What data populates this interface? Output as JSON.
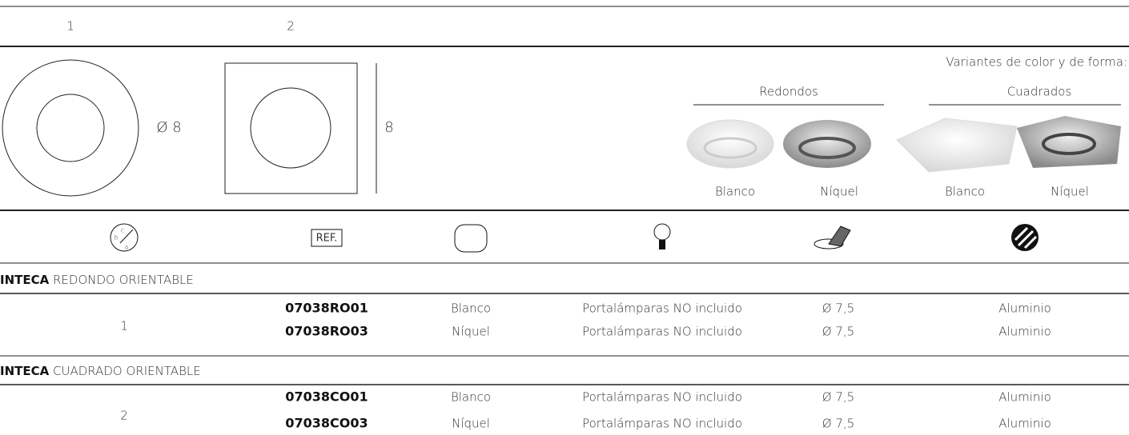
{
  "header": {
    "col_labels": [
      "1",
      "2"
    ]
  },
  "drawings": {
    "diameter": "Ø 8",
    "side": "8"
  },
  "variants": {
    "title": "Variantes de color y de forma:",
    "groups": [
      {
        "name": "Redondos",
        "items": [
          "Blanco",
          "Níquel"
        ]
      },
      {
        "name": "Cuadrados",
        "items": [
          "Blanco",
          "Níquel"
        ]
      }
    ]
  },
  "icons": {
    "dimension_letters": [
      "b",
      "c",
      "a"
    ],
    "ref_label": "REF."
  },
  "sections": [
    {
      "brand": "INTECA",
      "name": " REDONDO ORIENTABLE",
      "group": "1",
      "rows": [
        [
          "07038RO01",
          "Blanco",
          "Portalámparas NO incluido",
          "Ø 7,5",
          "Aluminio"
        ],
        [
          "07038RO03",
          "Níquel",
          "Portalámparas NO incluido",
          "Ø 7,5",
          "Aluminio"
        ]
      ]
    },
    {
      "brand": "INTECA",
      "name": " CUADRADO ORIENTABLE",
      "group": "2",
      "rows": [
        [
          "07038CO01",
          "Blanco",
          "Portalámparas NO incluido",
          "Ø 7,5",
          "Aluminio"
        ],
        [
          "07038CO03",
          "Níquel",
          "Portalámparas NO incluido",
          "Ø 7,5",
          "Aluminio"
        ]
      ]
    }
  ]
}
